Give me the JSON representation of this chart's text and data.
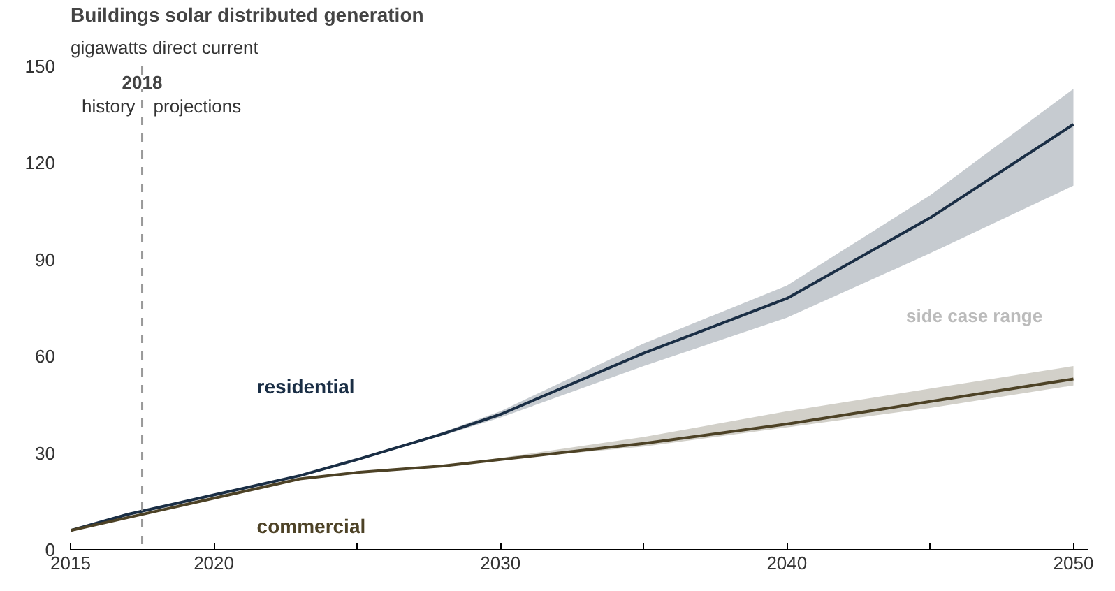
{
  "chart_data": {
    "type": "line",
    "title": "Buildings solar distributed generation",
    "subtitle": "gigawatts direct current",
    "x": [
      2015,
      2017,
      2020,
      2023,
      2025,
      2028,
      2030,
      2035,
      2040,
      2045,
      2050
    ],
    "series": [
      {
        "name": "residential",
        "color": "#1a2e45",
        "values": [
          6,
          11,
          17,
          23,
          28,
          36,
          42,
          61,
          78,
          103,
          132
        ],
        "lower": [
          6,
          11,
          17,
          23,
          28,
          35.5,
          41,
          57,
          72,
          92,
          113
        ],
        "upper": [
          6,
          11,
          17,
          23,
          28,
          36.5,
          43,
          64,
          82,
          110,
          143
        ]
      },
      {
        "name": "commercial",
        "color": "#4d4226",
        "values": [
          6,
          10,
          16,
          22,
          24,
          26,
          28,
          33,
          39,
          46,
          53
        ],
        "lower": [
          6,
          10,
          16,
          22,
          24,
          26,
          28,
          32,
          38,
          44,
          51
        ],
        "upper": [
          6,
          10,
          16,
          22,
          24,
          26,
          28.5,
          35,
          43,
          50,
          57
        ]
      }
    ],
    "xlim": [
      2015,
      2050.5
    ],
    "ylim": [
      0,
      150
    ],
    "xticks": [
      2015,
      2020,
      {
        "value": 2025,
        "label": null
      },
      2030,
      {
        "value": 2035,
        "label": null
      },
      2040,
      {
        "value": 2045,
        "label": null
      },
      2050
    ],
    "yticks": [
      0,
      30,
      60,
      90,
      120,
      150
    ],
    "ref_lines": [
      {
        "axis": "x",
        "value": 2017.5,
        "label": "2018",
        "color": "#999999",
        "line_style": "dashed"
      }
    ],
    "annotations": [
      "history",
      "projections",
      "side case range"
    ],
    "grid": false
  }
}
